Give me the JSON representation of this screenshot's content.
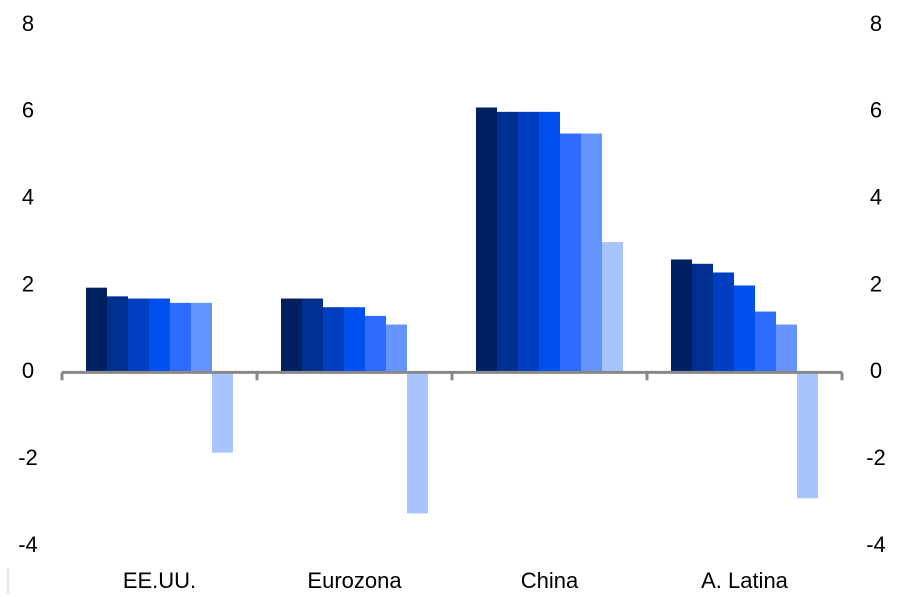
{
  "chart_data": {
    "type": "bar",
    "categories": [
      "EE.UU.",
      "Eurozona",
      "China",
      "A. Latina"
    ],
    "series": [
      {
        "color": "#002060",
        "values": [
          1.95,
          1.7,
          6.1,
          2.6
        ]
      },
      {
        "color": "#00308f",
        "values": [
          1.75,
          1.7,
          6.0,
          2.5
        ]
      },
      {
        "color": "#0040c0",
        "values": [
          1.7,
          1.5,
          6.0,
          2.3
        ]
      },
      {
        "color": "#0050f0",
        "values": [
          1.7,
          1.5,
          6.0,
          2.0
        ]
      },
      {
        "color": "#2f6bff",
        "values": [
          1.6,
          1.3,
          5.5,
          1.4
        ]
      },
      {
        "color": "#6495ff",
        "values": [
          1.6,
          1.1,
          5.5,
          1.1
        ]
      },
      {
        "color": "#a8c4ff",
        "values": [
          -1.85,
          -3.25,
          3.0,
          -2.9
        ]
      }
    ],
    "ylim": [
      -4,
      8
    ],
    "yticks": [
      -4,
      -2,
      0,
      2,
      4,
      6,
      8
    ],
    "y2lim": [
      -4,
      8
    ],
    "y2ticks": [
      -4,
      -2,
      0,
      2,
      4,
      6,
      8
    ]
  }
}
